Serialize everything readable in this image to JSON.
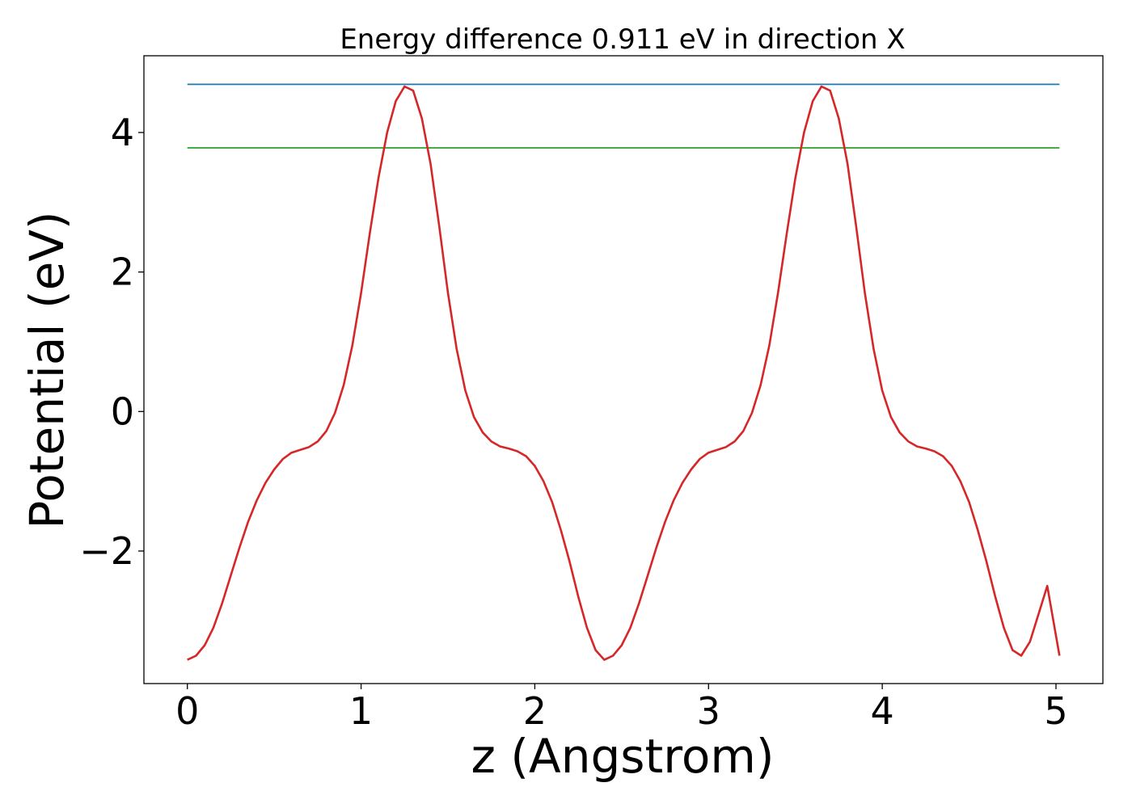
{
  "chart_data": {
    "type": "line",
    "title": "Energy difference 0.911 eV in direction X",
    "xlabel": "z (Angstrom)",
    "ylabel": "Potential (eV)",
    "xlim": [
      -0.25,
      5.27
    ],
    "ylim": [
      -3.9,
      5.1
    ],
    "xticks": [
      0,
      1,
      2,
      3,
      4,
      5
    ],
    "xtick_labels": [
      "0",
      "1",
      "2",
      "3",
      "4",
      "5"
    ],
    "yticks": [
      -2,
      0,
      2,
      4
    ],
    "ytick_labels": [
      "−2",
      "0",
      "2",
      "4"
    ],
    "grid": false,
    "legend": "none",
    "series": [
      {
        "color": "#d62728",
        "x": [
          0,
          0.05,
          0.1,
          0.15,
          0.2,
          0.25,
          0.3,
          0.35,
          0.4,
          0.45,
          0.5,
          0.55,
          0.6,
          0.65,
          0.7,
          0.75,
          0.8,
          0.85,
          0.9,
          0.95,
          1.0,
          1.05,
          1.1,
          1.15,
          1.2,
          1.25,
          1.3,
          1.35,
          1.4,
          1.45,
          1.5,
          1.55,
          1.6,
          1.65,
          1.7,
          1.75,
          1.8,
          1.85,
          1.9,
          1.95,
          2.0,
          2.05,
          2.1,
          2.15,
          2.2,
          2.25,
          2.3,
          2.35,
          2.4,
          2.45,
          2.5,
          2.55,
          2.6,
          2.65,
          2.7,
          2.75,
          2.8,
          2.85,
          2.9,
          2.95,
          3.0,
          3.05,
          3.1,
          3.15,
          3.2,
          3.25,
          3.3,
          3.35,
          3.4,
          3.45,
          3.5,
          3.55,
          3.6,
          3.65,
          3.7,
          3.75,
          3.8,
          3.85,
          3.9,
          3.95,
          4.0,
          4.05,
          4.1,
          4.15,
          4.2,
          4.25,
          4.3,
          4.35,
          4.4,
          4.45,
          4.5,
          4.55,
          4.6,
          4.65,
          4.7,
          4.75,
          4.8,
          4.85,
          4.9,
          4.95,
          5.02
        ],
        "y": [
          -3.56,
          -3.5,
          -3.35,
          -3.1,
          -2.75,
          -2.35,
          -1.95,
          -1.58,
          -1.27,
          -1.02,
          -0.83,
          -0.68,
          -0.59,
          -0.55,
          -0.51,
          -0.43,
          -0.28,
          -0.02,
          0.38,
          0.95,
          1.7,
          2.55,
          3.35,
          4.0,
          4.45,
          4.66,
          4.6,
          4.2,
          3.55,
          2.65,
          1.7,
          0.9,
          0.3,
          -0.08,
          -0.3,
          -0.43,
          -0.5,
          -0.53,
          -0.57,
          -0.64,
          -0.78,
          -1.0,
          -1.3,
          -1.7,
          -2.15,
          -2.65,
          -3.1,
          -3.42,
          -3.56,
          -3.5,
          -3.35,
          -3.1,
          -2.75,
          -2.35,
          -1.95,
          -1.58,
          -1.27,
          -1.02,
          -0.83,
          -0.68,
          -0.59,
          -0.55,
          -0.51,
          -0.43,
          -0.28,
          -0.02,
          0.38,
          0.95,
          1.7,
          2.55,
          3.35,
          4.0,
          4.45,
          4.66,
          4.6,
          4.2,
          3.55,
          2.65,
          1.7,
          0.9,
          0.3,
          -0.08,
          -0.3,
          -0.43,
          -0.5,
          -0.53,
          -0.57,
          -0.64,
          -0.78,
          -1.0,
          -1.3,
          -1.7,
          -2.15,
          -2.65,
          -3.1,
          -3.42,
          -3.5,
          -3.3,
          -2.9,
          -2.5,
          -3.5
        ]
      },
      {
        "color": "#1f77b4",
        "x": [
          0,
          5.02
        ],
        "y": [
          4.69,
          4.69
        ]
      },
      {
        "color": "#2ca02c",
        "x": [
          0,
          5.02
        ],
        "y": [
          3.78,
          3.78
        ]
      }
    ]
  }
}
